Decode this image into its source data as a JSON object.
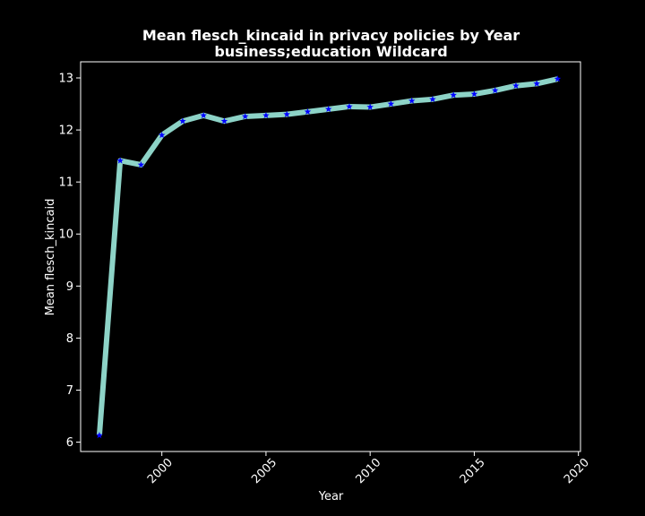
{
  "chart_data": {
    "type": "line",
    "title_line1": "Mean flesch_kincaid in privacy policies by Year",
    "title_line2": "business;education Wildcard",
    "xlabel": "Year",
    "ylabel": "Mean flesch_kincaid",
    "xlim": [
      1996.1,
      2020.1
    ],
    "ylim": [
      5.82,
      13.31
    ],
    "xticks": [
      2000,
      2005,
      2010,
      2015,
      2020
    ],
    "yticks": [
      6,
      7,
      8,
      9,
      10,
      11,
      12,
      13
    ],
    "grid": false,
    "line_color": "#8dd3c7",
    "marker_color": "#0000ff",
    "marker": "star",
    "background": "#000000",
    "series": [
      {
        "x": [
          1997,
          1998,
          1999,
          2000,
          2001,
          2002,
          2003,
          2004,
          2005,
          2006,
          2007,
          2008,
          2009,
          2010,
          2011,
          2012,
          2013,
          2014,
          2015,
          2016,
          2017,
          2018,
          2019
        ],
        "values": [
          6.13,
          11.41,
          11.33,
          11.9,
          12.17,
          12.28,
          12.17,
          12.26,
          12.28,
          12.3,
          12.35,
          12.4,
          12.45,
          12.44,
          12.5,
          12.56,
          12.59,
          12.67,
          12.69,
          12.76,
          12.85,
          12.89,
          12.98
        ]
      }
    ]
  }
}
